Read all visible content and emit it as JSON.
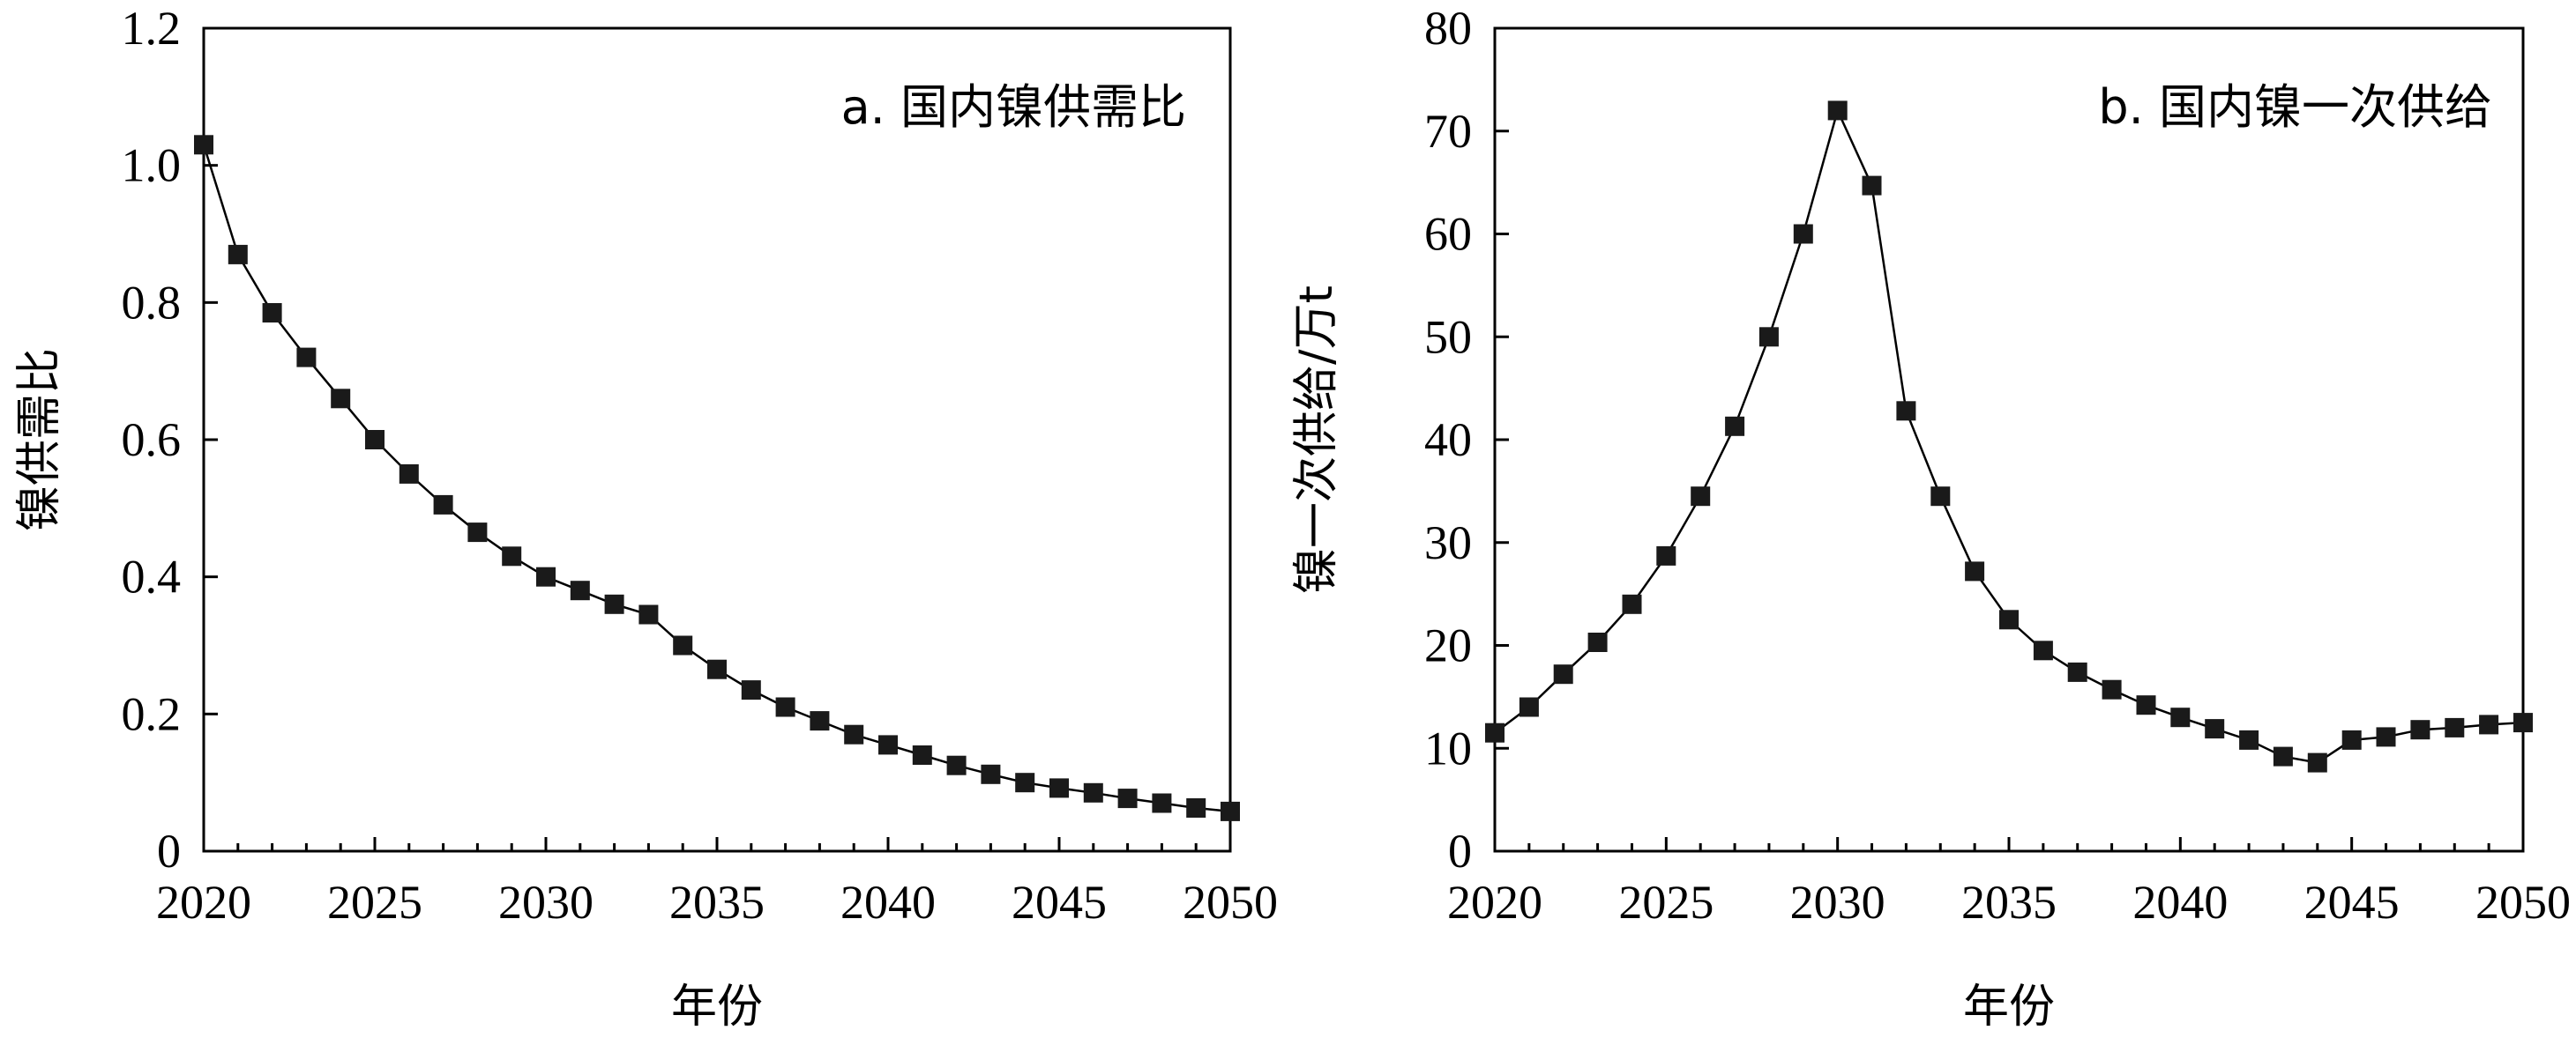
{
  "chart_data": [
    {
      "type": "line",
      "title": "a. 国内镍供需比",
      "xlabel": "年份",
      "ylabel": "镍供需比",
      "xlim": [
        2020,
        2050
      ],
      "ylim": [
        0,
        1.2
      ],
      "x_ticks": [
        "2020",
        "2025",
        "2030",
        "2035",
        "2040",
        "2045",
        "2050"
      ],
      "y_ticks": [
        "0",
        "0.2",
        "0.4",
        "0.6",
        "0.8",
        "1.0",
        "1.2"
      ],
      "grid": false,
      "x": [
        2020,
        2021,
        2022,
        2023,
        2024,
        2025,
        2026,
        2027,
        2028,
        2029,
        2030,
        2031,
        2032,
        2033,
        2034,
        2035,
        2036,
        2037,
        2038,
        2039,
        2040,
        2041,
        2042,
        2043,
        2044,
        2045,
        2046,
        2047,
        2048,
        2049,
        2050
      ],
      "values": [
        1.03,
        0.87,
        0.785,
        0.72,
        0.66,
        0.6,
        0.55,
        0.505,
        0.465,
        0.43,
        0.4,
        0.38,
        0.36,
        0.345,
        0.3,
        0.265,
        0.235,
        0.21,
        0.19,
        0.17,
        0.155,
        0.14,
        0.125,
        0.112,
        0.1,
        0.092,
        0.085,
        0.077,
        0.07,
        0.063,
        0.058
      ]
    },
    {
      "type": "line",
      "title": "b. 国内镍一次供给",
      "xlabel": "年份",
      "ylabel": "镍一次供给/万t",
      "xlim": [
        2020,
        2050
      ],
      "ylim": [
        0,
        80
      ],
      "x_ticks": [
        "2020",
        "2025",
        "2030",
        "2035",
        "2040",
        "2045",
        "2050"
      ],
      "y_ticks": [
        "0",
        "10",
        "20",
        "30",
        "40",
        "50",
        "60",
        "70",
        "80"
      ],
      "grid": false,
      "x": [
        2020,
        2021,
        2022,
        2023,
        2024,
        2025,
        2026,
        2027,
        2028,
        2029,
        2030,
        2031,
        2032,
        2033,
        2034,
        2035,
        2036,
        2037,
        2038,
        2039,
        2040,
        2041,
        2042,
        2043,
        2044,
        2045,
        2046,
        2047,
        2048,
        2049,
        2050
      ],
      "values": [
        11.5,
        14.0,
        17.2,
        20.3,
        24.0,
        28.7,
        34.5,
        41.3,
        50.0,
        60.0,
        72.0,
        64.7,
        42.8,
        34.5,
        27.2,
        22.5,
        19.5,
        17.4,
        15.7,
        14.2,
        13.0,
        11.9,
        10.8,
        9.2,
        8.6,
        10.8,
        11.1,
        11.8,
        12.0,
        12.3,
        12.5
      ]
    }
  ]
}
